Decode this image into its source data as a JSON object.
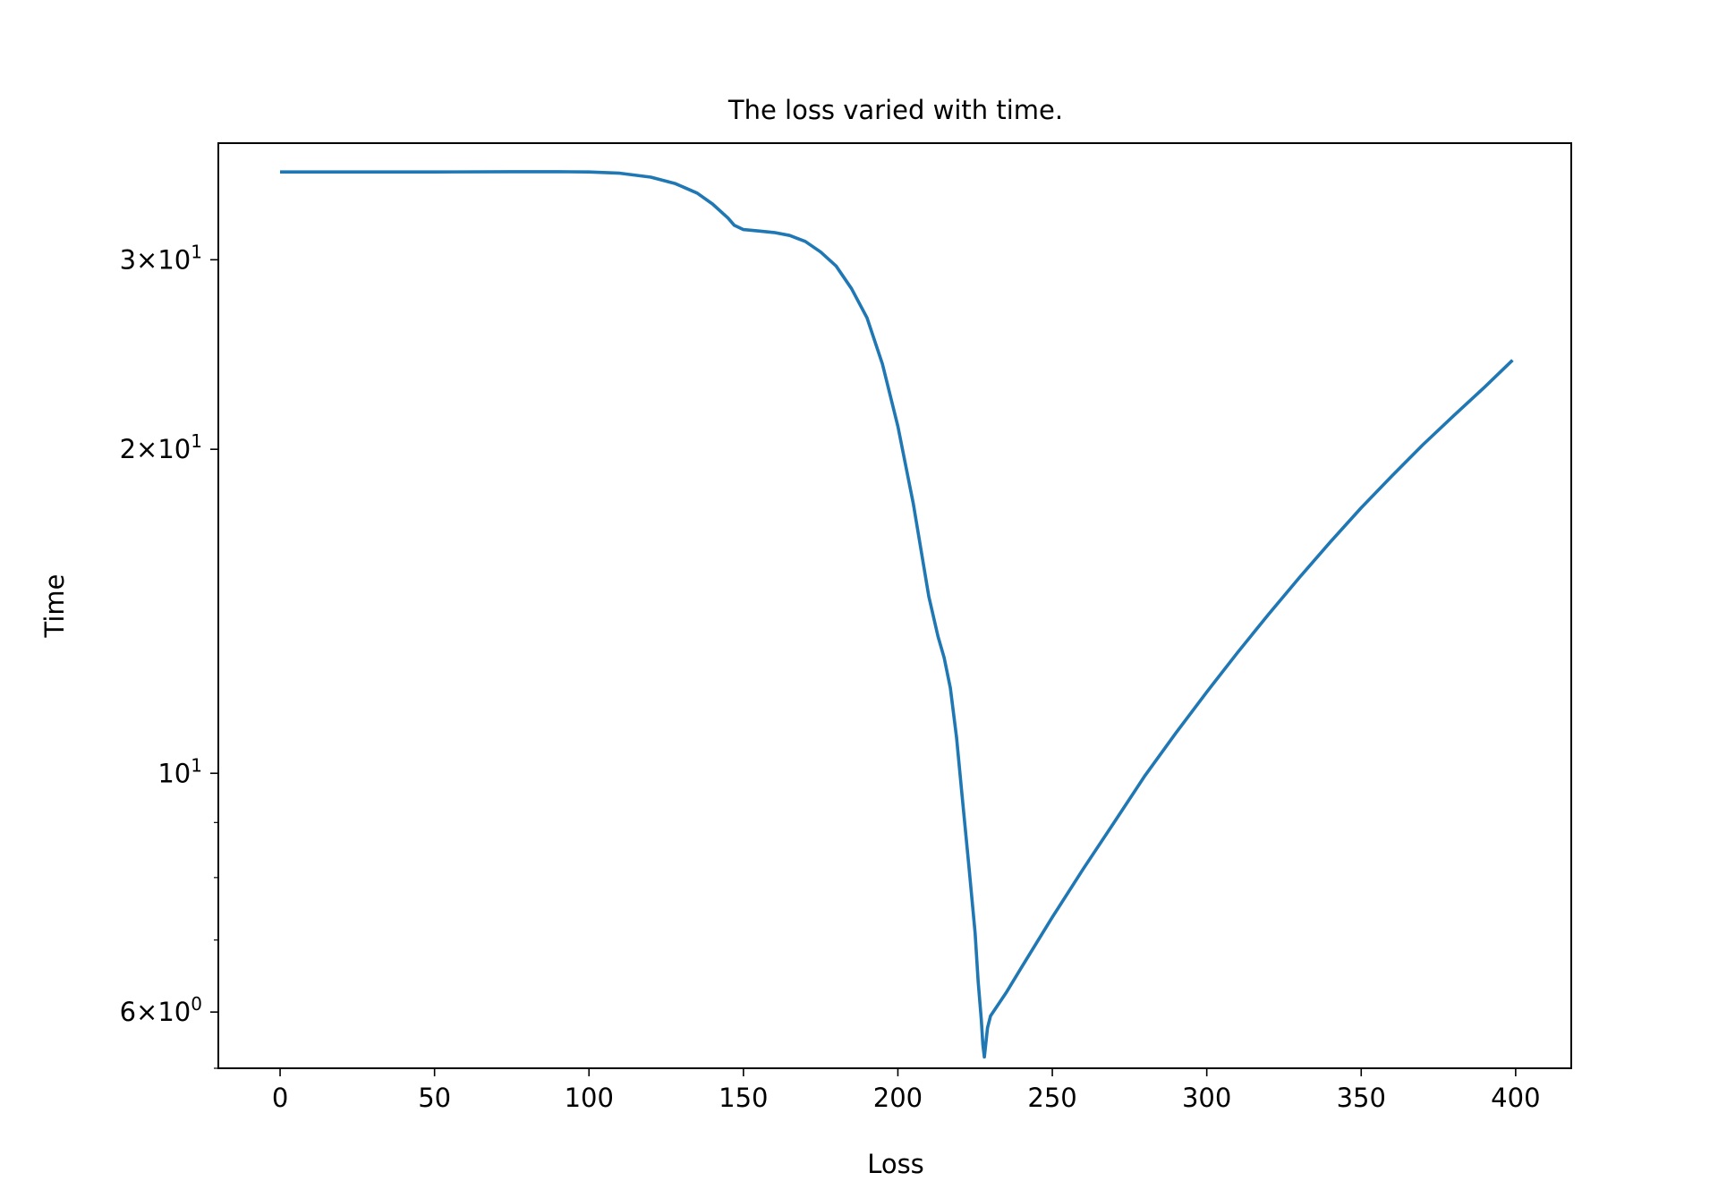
{
  "chart_data": {
    "type": "line",
    "title": "The loss varied with time.",
    "xlabel": "Loss",
    "ylabel": "Time",
    "xlim": [
      -20,
      418
    ],
    "ylim": [
      5.32,
      38.5
    ],
    "yscale": "log",
    "grid": false,
    "line_color": "#1f77b4",
    "x_ticks": [
      0,
      50,
      100,
      150,
      200,
      250,
      300,
      350,
      400
    ],
    "x_tick_labels": [
      "0",
      "50",
      "100",
      "150",
      "200",
      "250",
      "300",
      "350",
      "400"
    ],
    "y_major_ticks": [
      {
        "value": 30,
        "mantissa": "3",
        "base": "10",
        "exp": "1"
      },
      {
        "value": 20,
        "mantissa": "2",
        "base": "10",
        "exp": "1"
      },
      {
        "value": 10,
        "mantissa": "",
        "base": "10",
        "exp": "1"
      },
      {
        "value": 6,
        "mantissa": "6",
        "base": "10",
        "exp": "0"
      }
    ],
    "y_minor_ticks": [
      5.32,
      7,
      8,
      9
    ],
    "series": [
      {
        "x": [
          0,
          25,
          50,
          75,
          90,
          100,
          110,
          120,
          128,
          135,
          140,
          145,
          147,
          150,
          155,
          160,
          165,
          170,
          175,
          180,
          185,
          190,
          195,
          200,
          205,
          210,
          213,
          215,
          217,
          219,
          221,
          223,
          225,
          226,
          227,
          227.5,
          228,
          229,
          230,
          235,
          240,
          250,
          260,
          270,
          280,
          290,
          300,
          310,
          320,
          330,
          340,
          350,
          360,
          370,
          380,
          390,
          399
        ],
        "y": [
          36.2,
          36.2,
          36.2,
          36.22,
          36.22,
          36.2,
          36.1,
          35.8,
          35.3,
          34.6,
          33.8,
          32.8,
          32.3,
          32.0,
          31.9,
          31.8,
          31.6,
          31.2,
          30.5,
          29.6,
          28.2,
          26.5,
          24.0,
          21.0,
          17.8,
          14.6,
          13.4,
          12.8,
          12.0,
          10.8,
          9.4,
          8.2,
          7.1,
          6.4,
          5.9,
          5.6,
          5.45,
          5.8,
          5.95,
          6.25,
          6.6,
          7.35,
          8.15,
          9.0,
          9.95,
          10.9,
          11.9,
          12.95,
          14.05,
          15.2,
          16.4,
          17.65,
          18.9,
          20.2,
          21.5,
          22.85,
          24.2
        ]
      }
    ]
  }
}
